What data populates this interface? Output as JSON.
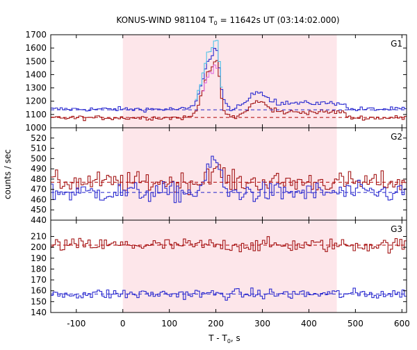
{
  "chart_data": {
    "type": "line",
    "title": {
      "main": "KONUS-WIND 981104 T",
      "sub": "0",
      "rest": " = 11642s UT (03:14:02.000)"
    },
    "xlabel": {
      "main": "T - T",
      "sub": "0",
      "rest": ", s"
    },
    "ylabel": "counts / sec",
    "xlim": [
      -155,
      610
    ],
    "xticks": [
      -100,
      0,
      100,
      200,
      300,
      400,
      500,
      600
    ],
    "highlight_interval": {
      "x0": 0,
      "x1": 460,
      "color": "#fde6ea"
    },
    "colors": {
      "red": "#a31515",
      "blue": "#2b2bd0",
      "cyan": "#4fc3e8",
      "magenta": "#e06ce0",
      "bg_dash_red": "#b00000",
      "bg_dash_blue": "#2222cc"
    },
    "panels": [
      {
        "name": "G1",
        "ylim": [
          1000,
          1700
        ],
        "yticks": [
          1000,
          1100,
          1200,
          1300,
          1400,
          1500,
          1600,
          1700
        ],
        "background_levels": [
          {
            "color": "blue",
            "y": 1135
          },
          {
            "color": "red",
            "y": 1078
          }
        ]
      },
      {
        "name": "G2",
        "ylim": [
          440,
          530
        ],
        "yticks": [
          440,
          450,
          460,
          470,
          480,
          490,
          500,
          510,
          520
        ],
        "background_levels": [
          {
            "color": "red",
            "y": 477
          },
          {
            "color": "blue",
            "y": 467
          }
        ]
      },
      {
        "name": "G3",
        "ylim": [
          140,
          225
        ],
        "yticks": [
          140,
          150,
          160,
          170,
          180,
          190,
          200,
          210
        ],
        "background_levels": [
          {
            "color": "red",
            "y": 202
          },
          {
            "color": "blue",
            "y": 157
          }
        ]
      }
    ],
    "series_step_s": 5
  }
}
